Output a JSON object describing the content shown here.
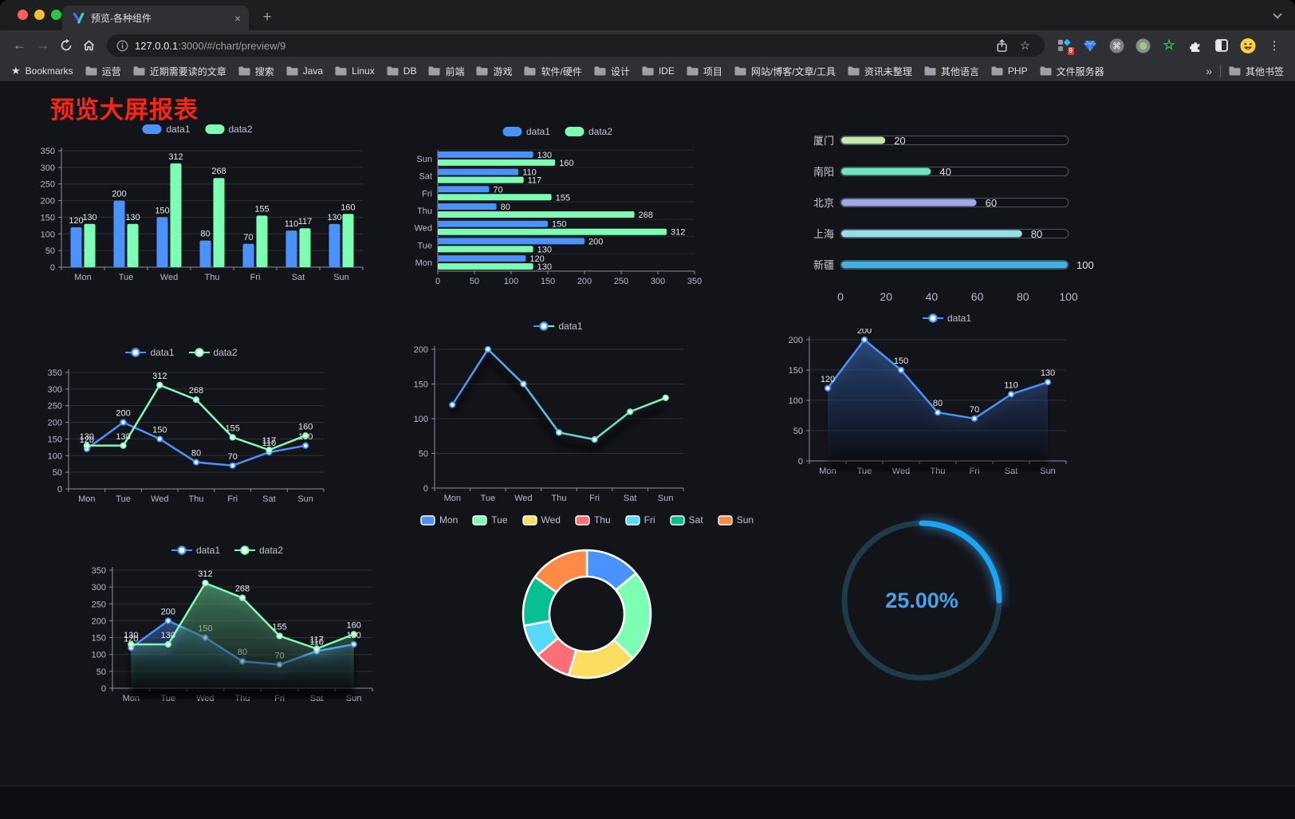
{
  "browser": {
    "tab_title": "预览-各种组件",
    "close_tab": "×",
    "new_tab_plus": "+",
    "url_host": "127.0.0.1",
    "url_rest": ":3000/#/chart/preview/9",
    "bookmarks_root": "Bookmarks",
    "bookmark_folders": [
      "运营",
      "近期需要读的文章",
      "搜索",
      "Java",
      "Linux",
      "DB",
      "前端",
      "游戏",
      "软件/硬件",
      "设计",
      "IDE",
      "项目",
      "网站/博客/文章/工具",
      "资讯未整理",
      "其他语言",
      "PHP",
      "文件服务器"
    ],
    "overflow_chevron": "»",
    "other_bookmarks": "其他书签",
    "extension_badge": "9"
  },
  "page": {
    "title": "预览大屏报表"
  },
  "chart_data": [
    {
      "id": "bar-grouped-vertical",
      "type": "bar",
      "categories": [
        "Mon",
        "Tue",
        "Wed",
        "Thu",
        "Fri",
        "Sat",
        "Sun"
      ],
      "series": [
        {
          "name": "data1",
          "color": "#4992ff",
          "values": [
            120,
            200,
            150,
            80,
            70,
            110,
            130
          ]
        },
        {
          "name": "data2",
          "color": "#7cffb2",
          "values": [
            130,
            130,
            312,
            268,
            155,
            117,
            160
          ]
        }
      ],
      "ylim": [
        0,
        350
      ],
      "ytick_step": 50,
      "legend_position": "top",
      "grid": true
    },
    {
      "id": "bar-grouped-horizontal",
      "type": "bar",
      "orientation": "horizontal",
      "categories": [
        "Mon",
        "Tue",
        "Wed",
        "Thu",
        "Fri",
        "Sat",
        "Sun"
      ],
      "series": [
        {
          "name": "data1",
          "color": "#4992ff",
          "values": [
            120,
            200,
            150,
            80,
            70,
            110,
            130
          ]
        },
        {
          "name": "data2",
          "color": "#7cffb2",
          "values": [
            130,
            130,
            312,
            268,
            155,
            117,
            160
          ]
        }
      ],
      "xlim": [
        0,
        350
      ],
      "xtick_step": 50,
      "legend_position": "top"
    },
    {
      "id": "city-progress",
      "type": "bar",
      "orientation": "horizontal",
      "categories": [
        "厦门",
        "南阳",
        "北京",
        "上海",
        "新疆"
      ],
      "values": [
        20,
        40,
        60,
        80,
        100
      ],
      "colors": [
        "#c4ebad",
        "#6be6c1",
        "#a0a7e6",
        "#96dee8",
        "#3fb1e3"
      ],
      "xlim": [
        0,
        100
      ],
      "xticks": [
        0,
        20,
        40,
        60,
        80,
        100
      ]
    },
    {
      "id": "line-two-series",
      "type": "line",
      "categories": [
        "Mon",
        "Tue",
        "Wed",
        "Thu",
        "Fri",
        "Sat",
        "Sun"
      ],
      "series": [
        {
          "name": "data1",
          "color": "#4992ff",
          "values": [
            120,
            200,
            150,
            80,
            70,
            110,
            130
          ]
        },
        {
          "name": "data2",
          "color": "#7cffb2",
          "values": [
            130,
            130,
            312,
            268,
            155,
            117,
            160
          ]
        }
      ],
      "ylim": [
        0,
        350
      ],
      "ytick_step": 50,
      "point_labels": true,
      "legend_position": "top"
    },
    {
      "id": "line-gradient",
      "type": "line",
      "categories": [
        "Mon",
        "Tue",
        "Wed",
        "Thu",
        "Fri",
        "Sat",
        "Sun"
      ],
      "series": [
        {
          "name": "data1",
          "gradient": [
            "#4992ff",
            "#7cffb2"
          ],
          "color": "#4992ff",
          "values": [
            120,
            200,
            150,
            80,
            70,
            110,
            130
          ]
        }
      ],
      "ylim": [
        0,
        200
      ],
      "ytick_step": 50,
      "point_labels": false,
      "shadow": true,
      "legend_position": "top"
    },
    {
      "id": "area-single",
      "type": "area",
      "categories": [
        "Mon",
        "Tue",
        "Wed",
        "Thu",
        "Fri",
        "Sat",
        "Sun"
      ],
      "series": [
        {
          "name": "data1",
          "color": "#4992ff",
          "values": [
            120,
            200,
            150,
            80,
            70,
            110,
            130
          ]
        }
      ],
      "ylim": [
        0,
        200
      ],
      "ytick_step": 50,
      "point_labels": true,
      "legend_position": "top"
    },
    {
      "id": "area-two-series",
      "type": "area",
      "categories": [
        "Mon",
        "Tue",
        "Wed",
        "Thu",
        "Fri",
        "Sat",
        "Sun"
      ],
      "series": [
        {
          "name": "data1",
          "color": "#4992ff",
          "values": [
            120,
            200,
            150,
            80,
            70,
            110,
            130
          ]
        },
        {
          "name": "data2",
          "color": "#7cffb2",
          "values": [
            130,
            130,
            312,
            268,
            155,
            117,
            160
          ]
        }
      ],
      "ylim": [
        0,
        350
      ],
      "ytick_step": 50,
      "point_labels": true,
      "legend_position": "top"
    },
    {
      "id": "donut",
      "type": "pie",
      "categories": [
        "Mon",
        "Tue",
        "Wed",
        "Thu",
        "Fri",
        "Sat",
        "Sun"
      ],
      "values": [
        120,
        200,
        150,
        80,
        70,
        110,
        130
      ],
      "colors": [
        "#4992ff",
        "#7cffb2",
        "#fddd60",
        "#ff6e76",
        "#58d9f9",
        "#05c091",
        "#ff8a45"
      ],
      "inner_radius_ratio": 0.59,
      "legend_position": "top",
      "border_color": "#ffffff"
    },
    {
      "id": "gauge",
      "type": "gauge",
      "value": 25,
      "max": 100,
      "label": "25.00%",
      "arc_color": "#16a6f5",
      "track_color": "#1e3b4a",
      "text_color": "#45a2e6"
    }
  ]
}
